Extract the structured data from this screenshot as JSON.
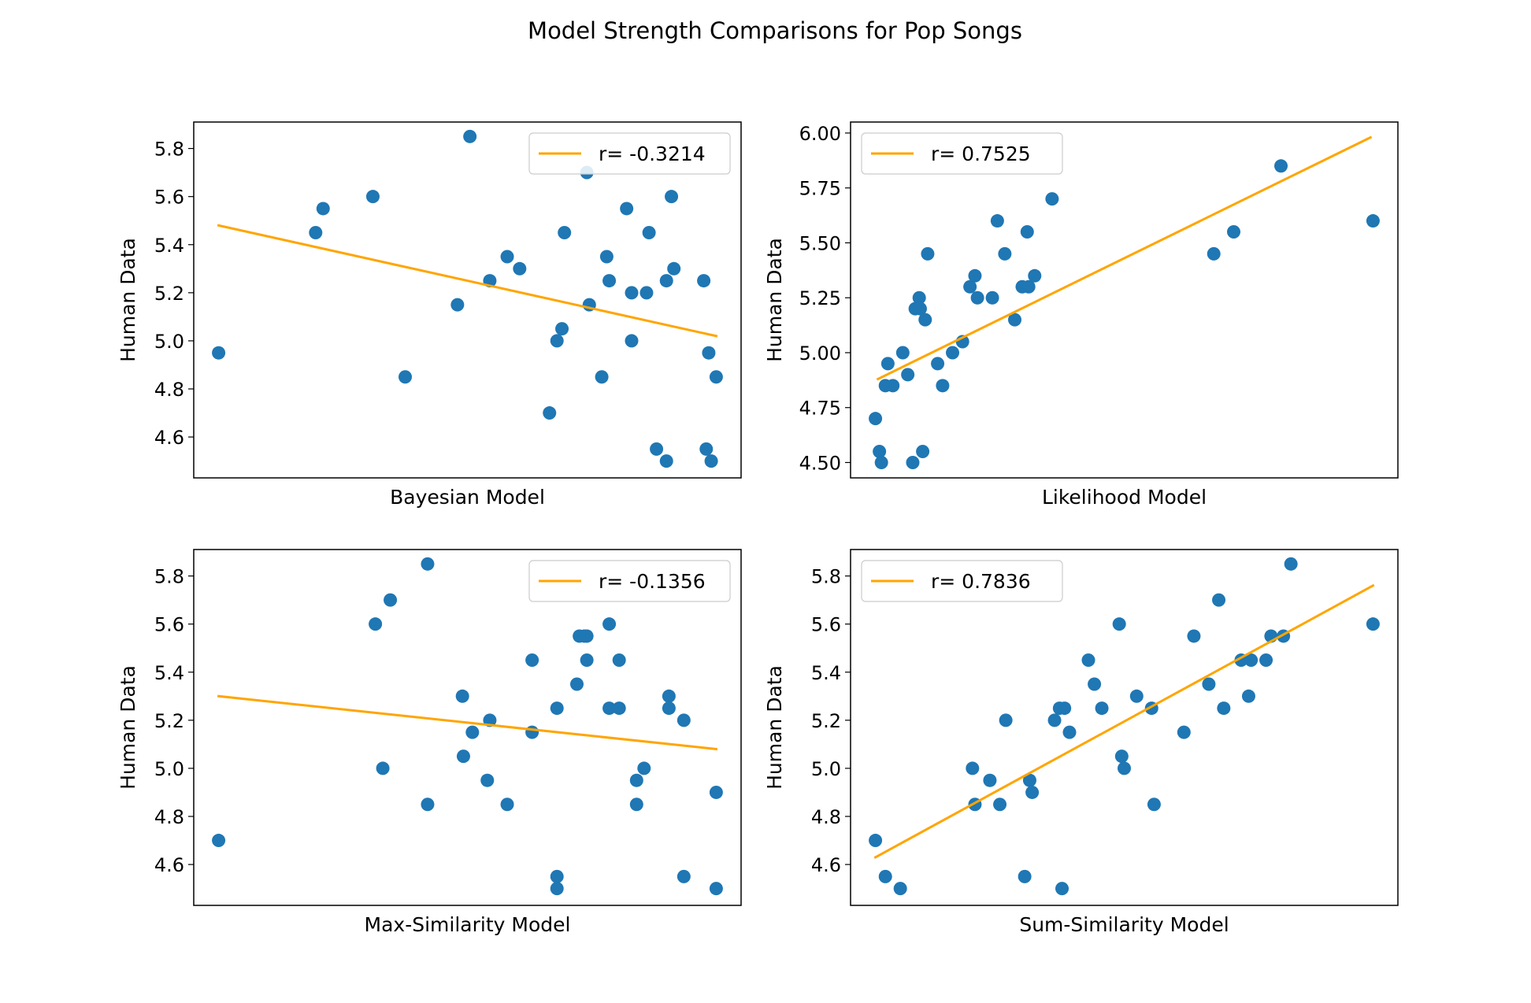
{
  "figure": {
    "title": "Model Strength Comparisons for Pop Songs"
  },
  "colors": {
    "points": "#1f77b4",
    "fit_line": "#ffa500",
    "axes": "#000000",
    "background": "#ffffff"
  },
  "chart_data": [
    {
      "type": "scatter",
      "title": "",
      "xlabel": "Bayesian Model",
      "ylabel": "Human Data",
      "legend": {
        "label": "r= -0.3214",
        "position": "top-right"
      },
      "x_ticks_shown": false,
      "xlim": [
        -0.05,
        1.05
      ],
      "ylim": [
        4.43,
        5.91
      ],
      "yticks": [
        "4.6",
        "4.8",
        "5.0",
        "5.2",
        "5.4",
        "5.6",
        "5.8"
      ],
      "ytick_values": [
        4.6,
        4.8,
        5.0,
        5.2,
        5.4,
        5.6,
        5.8
      ],
      "fit_line": {
        "x": [
          0,
          1
        ],
        "y": [
          5.48,
          5.02
        ]
      },
      "points": {
        "x": [
          0.0,
          0.195,
          0.21,
          0.31,
          0.375,
          0.48,
          0.505,
          0.545,
          0.58,
          0.605,
          0.665,
          0.68,
          0.69,
          0.695,
          0.74,
          0.745,
          0.77,
          0.78,
          0.785,
          0.82,
          0.83,
          0.83,
          0.86,
          0.865,
          0.88,
          0.9,
          0.9,
          0.91,
          0.915,
          0.975,
          0.98,
          0.985,
          0.99,
          1.0
        ],
        "y": [
          4.95,
          5.45,
          5.55,
          5.6,
          4.85,
          5.15,
          5.85,
          5.25,
          5.35,
          5.3,
          4.7,
          5.0,
          5.05,
          5.45,
          5.7,
          5.15,
          4.85,
          5.35,
          5.25,
          5.55,
          5.2,
          5.0,
          5.2,
          5.45,
          4.55,
          5.25,
          4.5,
          5.6,
          5.3,
          5.25,
          4.55,
          4.95,
          4.5,
          4.85
        ]
      }
    },
    {
      "type": "scatter",
      "title": "",
      "xlabel": "Likelihood Model",
      "ylabel": "Human Data",
      "legend": {
        "label": "r= 0.7525",
        "position": "top-left"
      },
      "x_ticks_shown": false,
      "xlim": [
        -0.05,
        1.05
      ],
      "ylim": [
        4.43,
        6.05
      ],
      "yticks": [
        "4.50",
        "4.75",
        "5.00",
        "5.25",
        "5.50",
        "5.75",
        "6.00"
      ],
      "ytick_values": [
        4.5,
        4.75,
        5.0,
        5.25,
        5.5,
        5.75,
        6.0
      ],
      "fit_line": {
        "x": [
          0.005,
          0.995
        ],
        "y": [
          4.88,
          5.98
        ]
      },
      "points": {
        "x": [
          0.0,
          0.008,
          0.012,
          0.02,
          0.025,
          0.035,
          0.055,
          0.065,
          0.075,
          0.08,
          0.088,
          0.09,
          0.095,
          0.1,
          0.105,
          0.125,
          0.135,
          0.155,
          0.175,
          0.19,
          0.2,
          0.205,
          0.235,
          0.245,
          0.26,
          0.28,
          0.295,
          0.305,
          0.308,
          0.32,
          0.355,
          0.72,
          0.68,
          0.815,
          1.0
        ],
        "y": [
          4.7,
          4.55,
          4.5,
          4.85,
          4.95,
          4.85,
          5.0,
          4.9,
          4.5,
          5.2,
          5.25,
          5.2,
          4.55,
          5.15,
          5.45,
          4.95,
          4.85,
          5.0,
          5.05,
          5.3,
          5.35,
          5.25,
          5.25,
          5.6,
          5.45,
          5.15,
          5.3,
          5.55,
          5.3,
          5.35,
          5.7,
          5.55,
          5.45,
          5.85,
          5.6
        ]
      }
    },
    {
      "type": "scatter",
      "title": "",
      "xlabel": "Max-Similarity Model",
      "ylabel": "Human Data",
      "legend": {
        "label": "r= -0.1356",
        "position": "top-right"
      },
      "x_ticks_shown": false,
      "xlim": [
        -0.05,
        1.05
      ],
      "ylim": [
        4.43,
        5.91
      ],
      "yticks": [
        "4.6",
        "4.8",
        "5.0",
        "5.2",
        "5.4",
        "5.6",
        "5.8"
      ],
      "ytick_values": [
        4.6,
        4.8,
        5.0,
        5.2,
        5.4,
        5.6,
        5.8
      ],
      "fit_line": {
        "x": [
          0,
          1
        ],
        "y": [
          5.3,
          5.08
        ]
      },
      "points": {
        "x": [
          0.0,
          0.315,
          0.33,
          0.345,
          0.42,
          0.42,
          0.49,
          0.492,
          0.51,
          0.54,
          0.545,
          0.58,
          0.63,
          0.63,
          0.68,
          0.68,
          0.68,
          0.72,
          0.725,
          0.735,
          0.74,
          0.74,
          0.785,
          0.785,
          0.805,
          0.805,
          0.84,
          0.84,
          0.855,
          0.905,
          0.905,
          0.935,
          0.935,
          1.0,
          1.0
        ],
        "y": [
          4.7,
          5.6,
          5.0,
          5.7,
          5.85,
          4.85,
          5.3,
          5.05,
          5.15,
          4.95,
          5.2,
          4.85,
          5.45,
          5.15,
          4.55,
          4.5,
          5.25,
          5.35,
          5.55,
          5.55,
          5.45,
          5.55,
          5.6,
          5.25,
          5.45,
          5.25,
          4.95,
          4.85,
          5.0,
          5.3,
          5.25,
          5.2,
          4.55,
          4.9,
          4.5
        ]
      }
    },
    {
      "type": "scatter",
      "title": "",
      "xlabel": "Sum-Similarity Model",
      "ylabel": "Human Data",
      "legend": {
        "label": "r= 0.7836",
        "position": "top-left"
      },
      "x_ticks_shown": false,
      "xlim": [
        -0.05,
        1.05
      ],
      "ylim": [
        4.43,
        5.91
      ],
      "yticks": [
        "4.6",
        "4.8",
        "5.0",
        "5.2",
        "5.4",
        "5.6",
        "5.8"
      ],
      "ytick_values": [
        4.6,
        4.8,
        5.0,
        5.2,
        5.4,
        5.6,
        5.8
      ],
      "fit_line": {
        "x": [
          0,
          1
        ],
        "y": [
          4.63,
          5.76
        ]
      },
      "points": {
        "x": [
          0.0,
          0.02,
          0.05,
          0.195,
          0.2,
          0.23,
          0.25,
          0.262,
          0.3,
          0.31,
          0.315,
          0.36,
          0.37,
          0.375,
          0.38,
          0.39,
          0.428,
          0.44,
          0.455,
          0.49,
          0.495,
          0.5,
          0.525,
          0.555,
          0.56,
          0.62,
          0.64,
          0.67,
          0.69,
          0.7,
          0.735,
          0.75,
          0.755,
          0.785,
          0.795,
          0.82,
          0.835,
          1.0
        ],
        "y": [
          4.7,
          4.55,
          4.5,
          5.0,
          4.85,
          4.95,
          4.85,
          5.2,
          4.55,
          4.95,
          4.9,
          5.2,
          5.25,
          4.5,
          5.25,
          5.15,
          5.45,
          5.35,
          5.25,
          5.6,
          5.05,
          5.0,
          5.3,
          5.25,
          4.85,
          5.15,
          5.55,
          5.35,
          5.7,
          5.25,
          5.45,
          5.3,
          5.45,
          5.45,
          5.55,
          5.55,
          5.85,
          5.6
        ]
      }
    }
  ]
}
